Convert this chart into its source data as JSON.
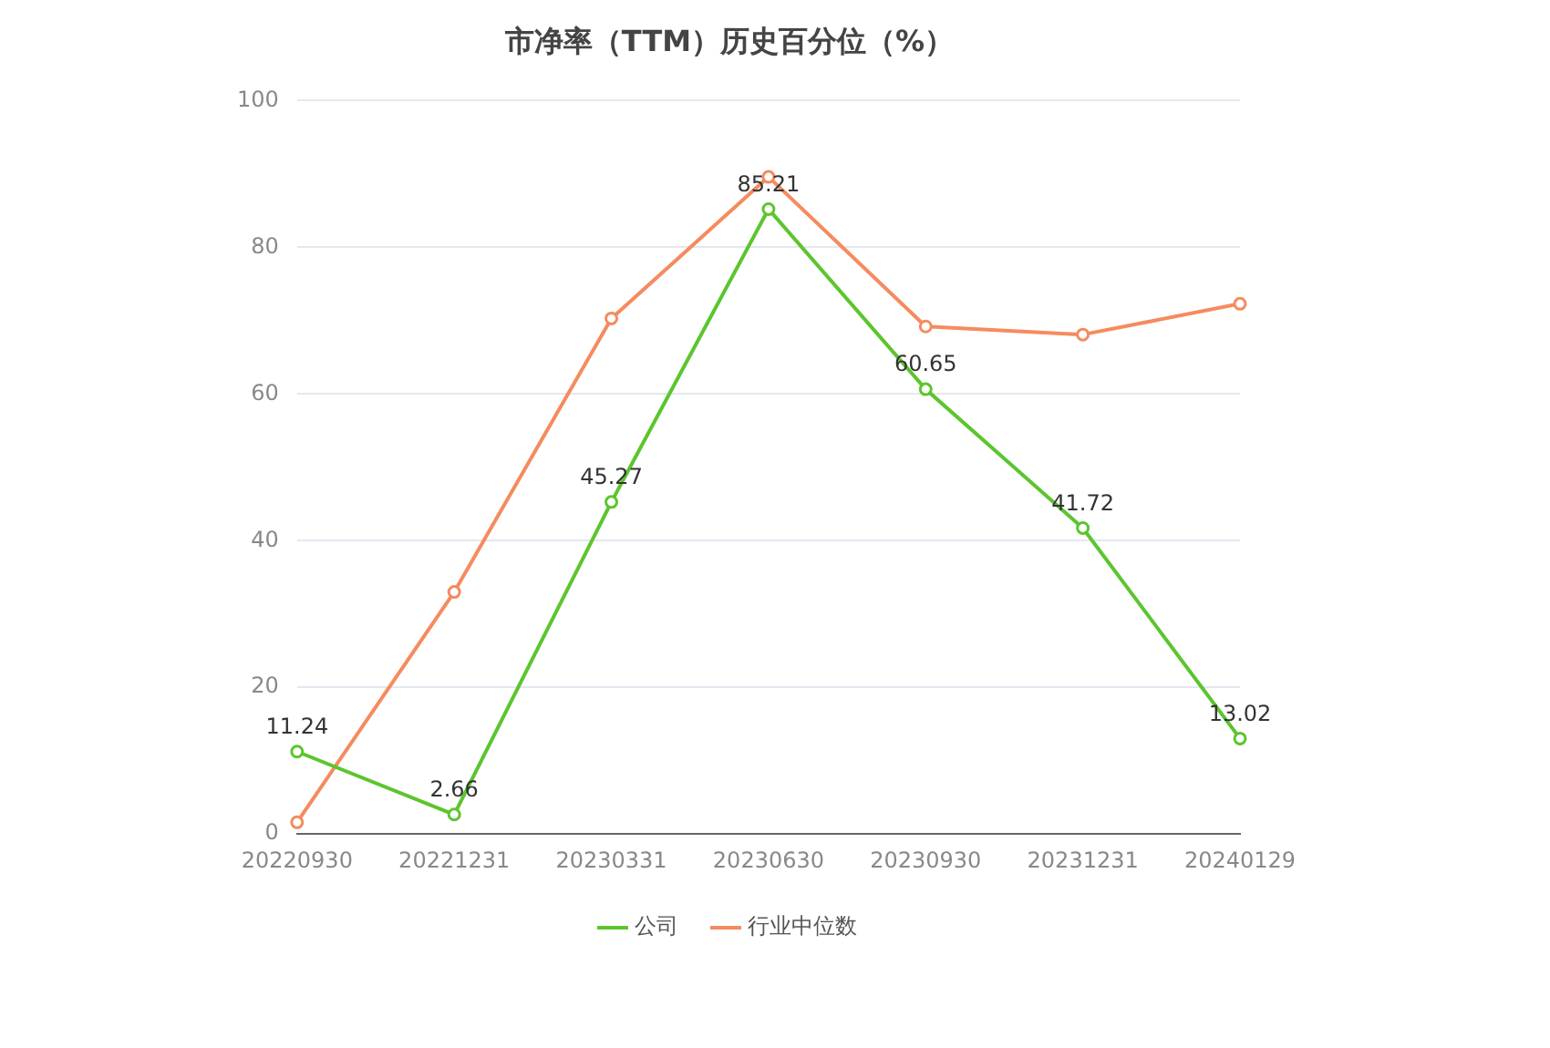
{
  "chart_data": {
    "type": "line",
    "title": "市净率（TTM）历史百分位（%）",
    "categories": [
      "20220930",
      "20221231",
      "20230331",
      "20230630",
      "20230930",
      "20231231",
      "20240129"
    ],
    "series": [
      {
        "name": "公司",
        "color": "#5cc52e",
        "values": [
          11.24,
          2.66,
          45.27,
          85.21,
          60.65,
          41.72,
          13.02
        ],
        "value_labels": [
          "11.24",
          "2.66",
          "45.27",
          "85.21",
          "60.65",
          "41.72",
          "13.02"
        ]
      },
      {
        "name": "行业中位数",
        "color": "#f58b5f",
        "values": [
          1.6,
          33,
          70.3,
          89.6,
          69.2,
          68.1,
          72.3
        ]
      }
    ],
    "ylim": [
      0,
      100
    ],
    "yticks": [
      0,
      20,
      40,
      60,
      80,
      100
    ],
    "grid": "y",
    "legend": "bottom",
    "marker": "circle",
    "line_style": "solid"
  }
}
